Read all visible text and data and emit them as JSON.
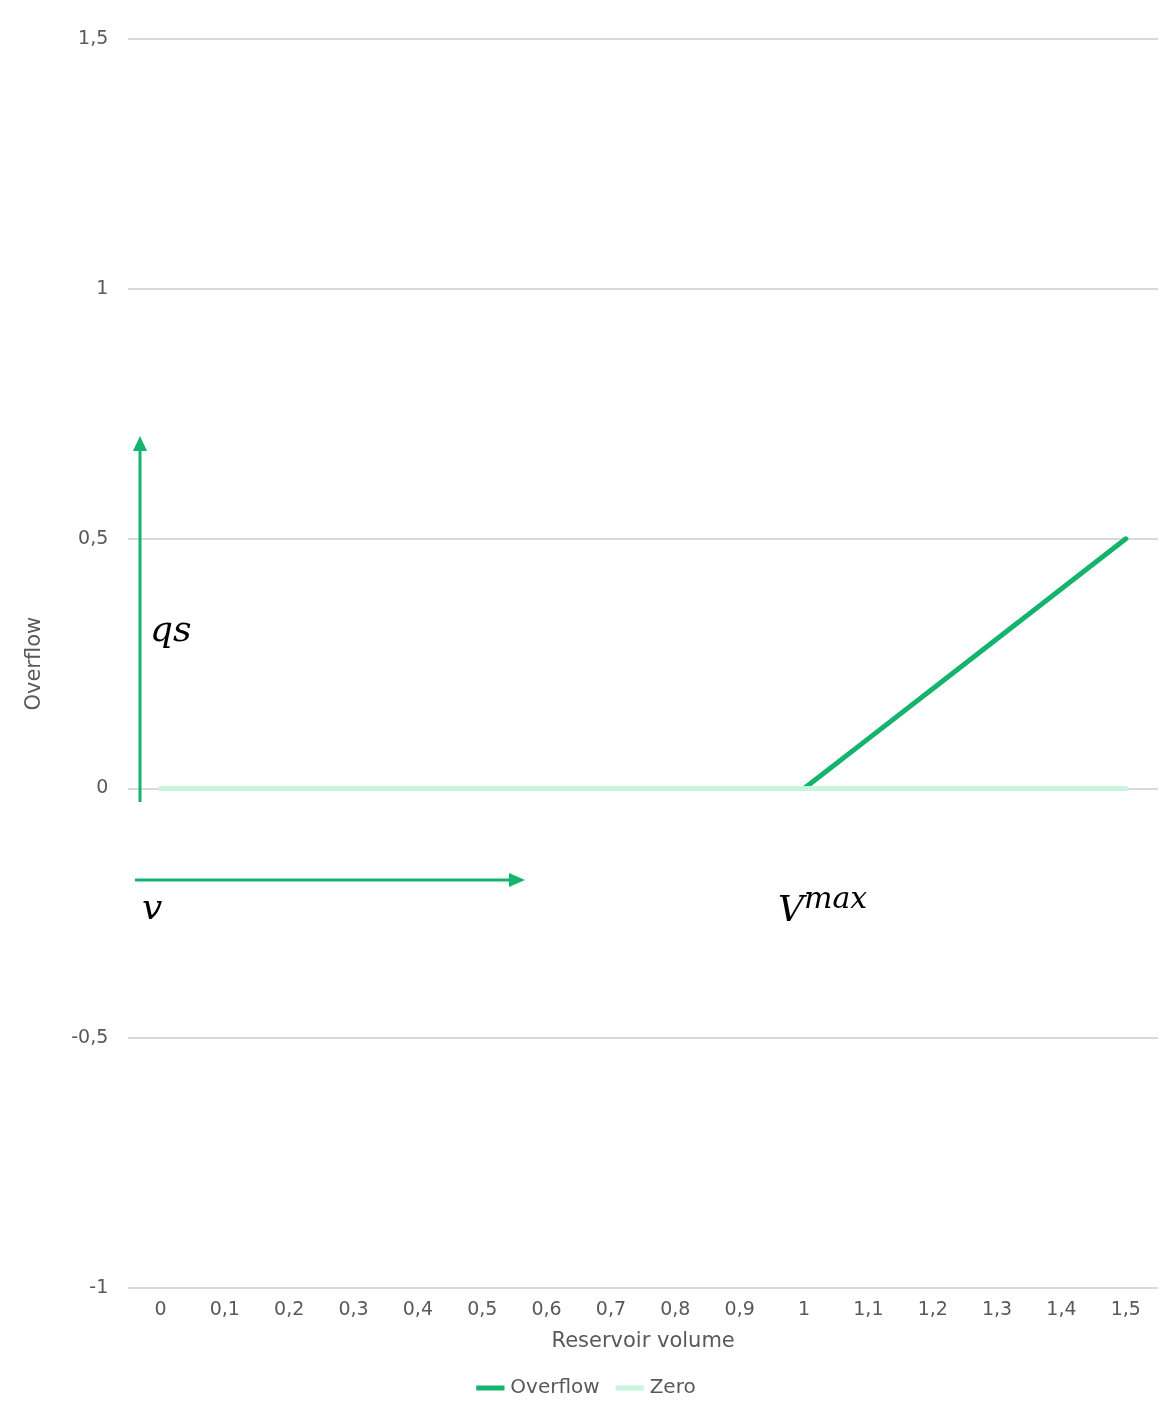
{
  "chart_data": {
    "type": "line",
    "xlabel": "Reservoir volume",
    "ylabel": "Overflow",
    "categories": [
      "0",
      "0,1",
      "0,2",
      "0,3",
      "0,4",
      "0,5",
      "0,6",
      "0,7",
      "0,8",
      "0,9",
      "1",
      "1,1",
      "1,2",
      "1,3",
      "1,4",
      "1,5"
    ],
    "series": [
      {
        "name": "Overflow",
        "color": "#14b46e",
        "values": [
          null,
          null,
          null,
          null,
          null,
          null,
          null,
          null,
          null,
          null,
          0,
          0.1,
          0.2,
          0.3,
          0.4,
          0.5
        ]
      },
      {
        "name": "Zero",
        "color": "#c8f5dc",
        "values": [
          0,
          0,
          0,
          0,
          0,
          0,
          0,
          0,
          0,
          0,
          0,
          0,
          0,
          0,
          0,
          0
        ]
      }
    ],
    "ylim": [
      -1,
      1.5
    ],
    "yticks": [
      {
        "value": -1,
        "label": "-1"
      },
      {
        "value": -0.5,
        "label": "-0,5"
      },
      {
        "value": 0,
        "label": "0"
      },
      {
        "value": 0.5,
        "label": "0,5"
      },
      {
        "value": 1,
        "label": "1"
      },
      {
        "value": 1.5,
        "label": "1,5"
      }
    ],
    "grid": "y",
    "legend": "bottom",
    "marker": "none",
    "line_style": "solid",
    "annotations": [
      "qs",
      "v",
      "V$^{max}$"
    ]
  }
}
